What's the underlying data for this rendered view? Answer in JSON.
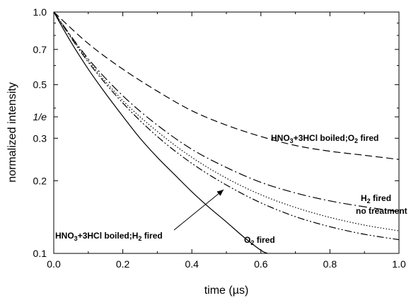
{
  "chart_data": {
    "type": "line",
    "xlabel": "time (µs)",
    "ylabel": "normalized intensity",
    "xlim": [
      0.0,
      1.0
    ],
    "ylim": [
      0.1,
      1.0
    ],
    "yscale": "log",
    "grid": false,
    "x_ticks": [
      "0.0",
      "0.2",
      "0.4",
      "0.6",
      "0.8",
      "1.0"
    ],
    "y_ticks": [
      {
        "value": 1.0,
        "label": "1.0"
      },
      {
        "value": 0.7,
        "label": "0.7"
      },
      {
        "value": 0.5,
        "label": "0.5"
      },
      {
        "value": 0.3679,
        "label": "1/e"
      },
      {
        "value": 0.3,
        "label": "0.3"
      },
      {
        "value": 0.2,
        "label": "0.2"
      },
      {
        "value": 0.1,
        "label": "0.1"
      }
    ],
    "series": [
      {
        "name": "HNO3+3HCl boiled;O2 fired",
        "style": "dashed",
        "x": [
          0,
          0.1,
          0.2,
          0.3,
          0.4,
          0.5,
          0.6,
          0.7,
          0.8,
          0.9,
          1.0
        ],
        "y": [
          1.0,
          0.74,
          0.58,
          0.47,
          0.39,
          0.34,
          0.305,
          0.28,
          0.265,
          0.255,
          0.245
        ]
      },
      {
        "name": "H2 fired",
        "style": "dash-dot",
        "x": [
          0,
          0.1,
          0.2,
          0.3,
          0.4,
          0.5,
          0.6,
          0.7,
          0.8,
          0.9,
          1.0
        ],
        "y": [
          1.0,
          0.64,
          0.45,
          0.34,
          0.27,
          0.227,
          0.197,
          0.178,
          0.165,
          0.156,
          0.149
        ]
      },
      {
        "name": "no treatment",
        "style": "dotted",
        "x": [
          0,
          0.1,
          0.2,
          0.3,
          0.4,
          0.5,
          0.6,
          0.7,
          0.8,
          0.9,
          1.0
        ],
        "y": [
          1.0,
          0.63,
          0.43,
          0.32,
          0.25,
          0.205,
          0.175,
          0.155,
          0.141,
          0.131,
          0.124
        ]
      },
      {
        "name": "HNO3+3HCl boiled;H2 fired",
        "style": "dash-dot-dot",
        "x": [
          0,
          0.1,
          0.2,
          0.3,
          0.4,
          0.5,
          0.6,
          0.7,
          0.8,
          0.9,
          1.0
        ],
        "y": [
          1.0,
          0.62,
          0.42,
          0.305,
          0.236,
          0.192,
          0.162,
          0.142,
          0.129,
          0.12,
          0.114
        ]
      },
      {
        "name": "O2 fired",
        "style": "solid",
        "x": [
          0,
          0.05,
          0.1,
          0.15,
          0.2,
          0.25,
          0.3,
          0.35,
          0.4,
          0.45,
          0.5,
          0.55,
          0.6,
          0.62
        ],
        "y": [
          1.0,
          0.75,
          0.58,
          0.46,
          0.37,
          0.3,
          0.25,
          0.212,
          0.18,
          0.155,
          0.135,
          0.117,
          0.103,
          0.1
        ]
      }
    ],
    "annotations": [
      {
        "id": "o2boiled",
        "series": "HNO3+3HCl boiled;O2 fired",
        "parts": [
          {
            "t": "HNO"
          },
          {
            "t": "3",
            "sub": true
          },
          {
            "t": "+3HCl boiled;O"
          },
          {
            "t": "2",
            "sub": true
          },
          {
            "t": " fired"
          }
        ]
      },
      {
        "id": "h2fired",
        "series": "H2 fired",
        "parts": [
          {
            "t": "H"
          },
          {
            "t": "2",
            "sub": true
          },
          {
            "t": " fired"
          }
        ]
      },
      {
        "id": "notreat",
        "series": "no treatment",
        "parts": [
          {
            "t": "no treatment"
          }
        ]
      },
      {
        "id": "h2boiled",
        "series": "HNO3+3HCl boiled;H2 fired",
        "parts": [
          {
            "t": "HNO"
          },
          {
            "t": "3",
            "sub": true
          },
          {
            "t": "+3HCl boiled;H"
          },
          {
            "t": "2",
            "sub": true
          },
          {
            "t": " fired"
          }
        ],
        "arrow": true
      },
      {
        "id": "o2fired",
        "series": "O2 fired",
        "parts": [
          {
            "t": "O"
          },
          {
            "t": "2",
            "sub": true
          },
          {
            "t": " fired"
          }
        ]
      }
    ]
  }
}
